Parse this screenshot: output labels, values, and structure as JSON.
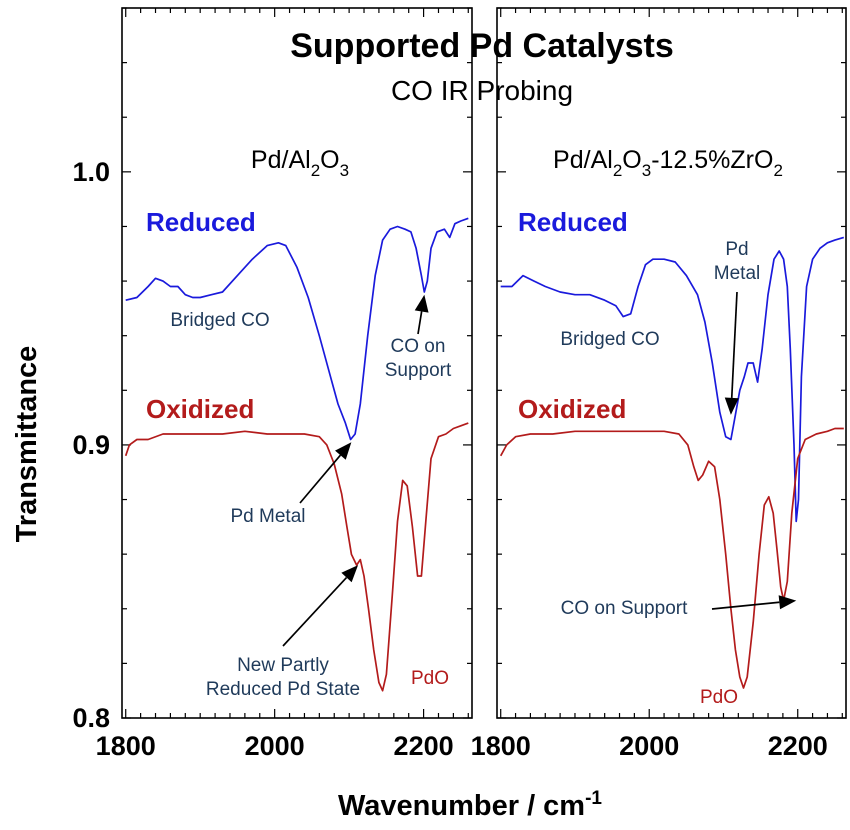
{
  "title": "Supported Pd Catalysts",
  "subtitle": "CO IR Probing",
  "colors": {
    "reduced": "#1a1adc",
    "oxidized": "#b31b1b",
    "annotation": "#1f3a5a",
    "frame": "#000000"
  },
  "chart_data": [
    {
      "type": "line",
      "panel_title_parts": [
        "Pd/Al",
        "2",
        "O",
        "3"
      ],
      "xlabel": "Wavenumber / cm",
      "xlabel_superscript": "-1",
      "ylabel": "Transmittance",
      "xlim": [
        1795,
        2265
      ],
      "ylim": [
        0.8,
        1.06
      ],
      "xticks": [
        1800,
        2000,
        2200
      ],
      "xtick_labels": [
        "1800",
        "2000",
        "2200"
      ],
      "yticks": [
        0.8,
        0.9,
        1.0
      ],
      "ytick_labels": [
        "0.8",
        "0.9",
        "1.0"
      ],
      "series": [
        {
          "name": "Reduced",
          "label": "Reduced",
          "color": "#1a1adc",
          "points": [
            [
              1800,
              0.953
            ],
            [
              1815,
              0.954
            ],
            [
              1830,
              0.958
            ],
            [
              1840,
              0.961
            ],
            [
              1850,
              0.96
            ],
            [
              1860,
              0.958
            ],
            [
              1870,
              0.958
            ],
            [
              1880,
              0.955
            ],
            [
              1890,
              0.954
            ],
            [
              1900,
              0.954
            ],
            [
              1915,
              0.955
            ],
            [
              1930,
              0.956
            ],
            [
              1950,
              0.962
            ],
            [
              1970,
              0.968
            ],
            [
              1990,
              0.973
            ],
            [
              2005,
              0.974
            ],
            [
              2015,
              0.973
            ],
            [
              2030,
              0.965
            ],
            [
              2045,
              0.954
            ],
            [
              2060,
              0.94
            ],
            [
              2075,
              0.925
            ],
            [
              2085,
              0.915
            ],
            [
              2095,
              0.908
            ],
            [
              2102,
              0.902
            ],
            [
              2108,
              0.904
            ],
            [
              2115,
              0.915
            ],
            [
              2125,
              0.94
            ],
            [
              2135,
              0.962
            ],
            [
              2145,
              0.975
            ],
            [
              2155,
              0.979
            ],
            [
              2165,
              0.98
            ],
            [
              2175,
              0.979
            ],
            [
              2183,
              0.978
            ],
            [
              2190,
              0.972
            ],
            [
              2197,
              0.962
            ],
            [
              2201,
              0.956
            ],
            [
              2205,
              0.96
            ],
            [
              2210,
              0.972
            ],
            [
              2218,
              0.978
            ],
            [
              2228,
              0.979
            ],
            [
              2235,
              0.976
            ],
            [
              2242,
              0.981
            ],
            [
              2250,
              0.982
            ],
            [
              2260,
              0.983
            ]
          ]
        },
        {
          "name": "Oxidized",
          "label": "Oxidized",
          "color": "#b31b1b",
          "points": [
            [
              1800,
              0.896
            ],
            [
              1805,
              0.9
            ],
            [
              1815,
              0.902
            ],
            [
              1830,
              0.902
            ],
            [
              1850,
              0.904
            ],
            [
              1870,
              0.904
            ],
            [
              1900,
              0.904
            ],
            [
              1930,
              0.904
            ],
            [
              1960,
              0.905
            ],
            [
              1990,
              0.904
            ],
            [
              2020,
              0.904
            ],
            [
              2040,
              0.904
            ],
            [
              2060,
              0.903
            ],
            [
              2070,
              0.9
            ],
            [
              2080,
              0.893
            ],
            [
              2090,
              0.882
            ],
            [
              2097,
              0.87
            ],
            [
              2103,
              0.86
            ],
            [
              2110,
              0.856
            ],
            [
              2115,
              0.858
            ],
            [
              2120,
              0.852
            ],
            [
              2126,
              0.84
            ],
            [
              2133,
              0.825
            ],
            [
              2140,
              0.813
            ],
            [
              2145,
              0.81
            ],
            [
              2150,
              0.816
            ],
            [
              2158,
              0.845
            ],
            [
              2165,
              0.872
            ],
            [
              2172,
              0.887
            ],
            [
              2178,
              0.885
            ],
            [
              2185,
              0.87
            ],
            [
              2192,
              0.852
            ],
            [
              2197,
              0.852
            ],
            [
              2203,
              0.872
            ],
            [
              2210,
              0.895
            ],
            [
              2220,
              0.903
            ],
            [
              2230,
              0.904
            ],
            [
              2240,
              0.906
            ],
            [
              2250,
              0.907
            ],
            [
              2260,
              0.908
            ]
          ]
        }
      ],
      "annotations": [
        {
          "id": "bridged-co",
          "lines": [
            "Bridged CO"
          ],
          "color": "#1f3a5a"
        },
        {
          "id": "co-on-support",
          "lines": [
            "CO on",
            "Support"
          ],
          "color": "#1f3a5a",
          "arrow_to": [
            2201,
            0.955
          ]
        },
        {
          "id": "pd-metal",
          "lines": [
            "Pd Metal"
          ],
          "color": "#1f3a5a",
          "arrow_to": [
            2103,
            0.901
          ]
        },
        {
          "id": "new-partly-reduced",
          "lines": [
            "New Partly",
            "Reduced Pd State"
          ],
          "color": "#1f3a5a",
          "arrow_to": [
            2112,
            0.856
          ]
        },
        {
          "id": "pdo",
          "lines": [
            "PdO"
          ],
          "color": "#b31b1b"
        }
      ]
    },
    {
      "type": "line",
      "panel_title_parts": [
        "Pd/Al",
        "2",
        "O",
        "3",
        "-12.5%ZrO",
        "2"
      ],
      "xlabel": "",
      "ylabel": "",
      "xlim": [
        1795,
        2265
      ],
      "ylim": [
        0.8,
        1.06
      ],
      "xticks": [
        1800,
        2000,
        2200
      ],
      "xtick_labels": [
        "1800",
        "2000",
        "2200"
      ],
      "yticks": [
        0.8,
        0.9,
        1.0
      ],
      "series": [
        {
          "name": "Reduced",
          "label": "Reduced",
          "color": "#1a1adc",
          "points": [
            [
              1800,
              0.958
            ],
            [
              1815,
              0.958
            ],
            [
              1830,
              0.962
            ],
            [
              1845,
              0.96
            ],
            [
              1860,
              0.958
            ],
            [
              1880,
              0.956
            ],
            [
              1900,
              0.955
            ],
            [
              1920,
              0.955
            ],
            [
              1940,
              0.953
            ],
            [
              1955,
              0.951
            ],
            [
              1965,
              0.947
            ],
            [
              1975,
              0.948
            ],
            [
              1985,
              0.958
            ],
            [
              1995,
              0.966
            ],
            [
              2005,
              0.968
            ],
            [
              2020,
              0.968
            ],
            [
              2035,
              0.967
            ],
            [
              2050,
              0.962
            ],
            [
              2065,
              0.955
            ],
            [
              2075,
              0.945
            ],
            [
              2085,
              0.93
            ],
            [
              2095,
              0.912
            ],
            [
              2103,
              0.903
            ],
            [
              2110,
              0.902
            ],
            [
              2116,
              0.911
            ],
            [
              2122,
              0.92
            ],
            [
              2128,
              0.925
            ],
            [
              2133,
              0.93
            ],
            [
              2140,
              0.93
            ],
            [
              2146,
              0.923
            ],
            [
              2152,
              0.935
            ],
            [
              2160,
              0.955
            ],
            [
              2168,
              0.968
            ],
            [
              2175,
              0.971
            ],
            [
              2181,
              0.968
            ],
            [
              2186,
              0.958
            ],
            [
              2190,
              0.935
            ],
            [
              2195,
              0.9
            ],
            [
              2198,
              0.872
            ],
            [
              2201,
              0.88
            ],
            [
              2205,
              0.925
            ],
            [
              2212,
              0.958
            ],
            [
              2220,
              0.968
            ],
            [
              2230,
              0.972
            ],
            [
              2240,
              0.974
            ],
            [
              2250,
              0.975
            ],
            [
              2262,
              0.976
            ]
          ]
        },
        {
          "name": "Oxidized",
          "label": "Oxidized",
          "color": "#b31b1b",
          "points": [
            [
              1800,
              0.896
            ],
            [
              1808,
              0.9
            ],
            [
              1820,
              0.903
            ],
            [
              1840,
              0.904
            ],
            [
              1870,
              0.904
            ],
            [
              1900,
              0.905
            ],
            [
              1930,
              0.905
            ],
            [
              1960,
              0.905
            ],
            [
              1990,
              0.905
            ],
            [
              2020,
              0.905
            ],
            [
              2040,
              0.904
            ],
            [
              2052,
              0.9
            ],
            [
              2060,
              0.892
            ],
            [
              2066,
              0.887
            ],
            [
              2072,
              0.889
            ],
            [
              2080,
              0.894
            ],
            [
              2088,
              0.892
            ],
            [
              2095,
              0.88
            ],
            [
              2103,
              0.86
            ],
            [
              2110,
              0.84
            ],
            [
              2116,
              0.825
            ],
            [
              2122,
              0.815
            ],
            [
              2127,
              0.811
            ],
            [
              2132,
              0.815
            ],
            [
              2140,
              0.835
            ],
            [
              2148,
              0.86
            ],
            [
              2155,
              0.878
            ],
            [
              2161,
              0.881
            ],
            [
              2167,
              0.875
            ],
            [
              2172,
              0.862
            ],
            [
              2177,
              0.848
            ],
            [
              2181,
              0.843
            ],
            [
              2186,
              0.85
            ],
            [
              2192,
              0.875
            ],
            [
              2200,
              0.895
            ],
            [
              2210,
              0.902
            ],
            [
              2225,
              0.904
            ],
            [
              2240,
              0.905
            ],
            [
              2250,
              0.906
            ],
            [
              2262,
              0.906
            ]
          ]
        }
      ],
      "annotations": [
        {
          "id": "bridged-co",
          "lines": [
            "Bridged CO"
          ],
          "color": "#1f3a5a"
        },
        {
          "id": "pd-metal",
          "lines": [
            "Pd",
            "Metal"
          ],
          "color": "#1f3a5a",
          "arrow_to": [
            2110,
            0.911
          ]
        },
        {
          "id": "co-on-support",
          "lines": [
            "CO on Support"
          ],
          "color": "#1f3a5a",
          "arrow_to": [
            2198,
            0.843
          ]
        },
        {
          "id": "pdo",
          "lines": [
            "PdO"
          ],
          "color": "#b31b1b"
        }
      ]
    }
  ]
}
